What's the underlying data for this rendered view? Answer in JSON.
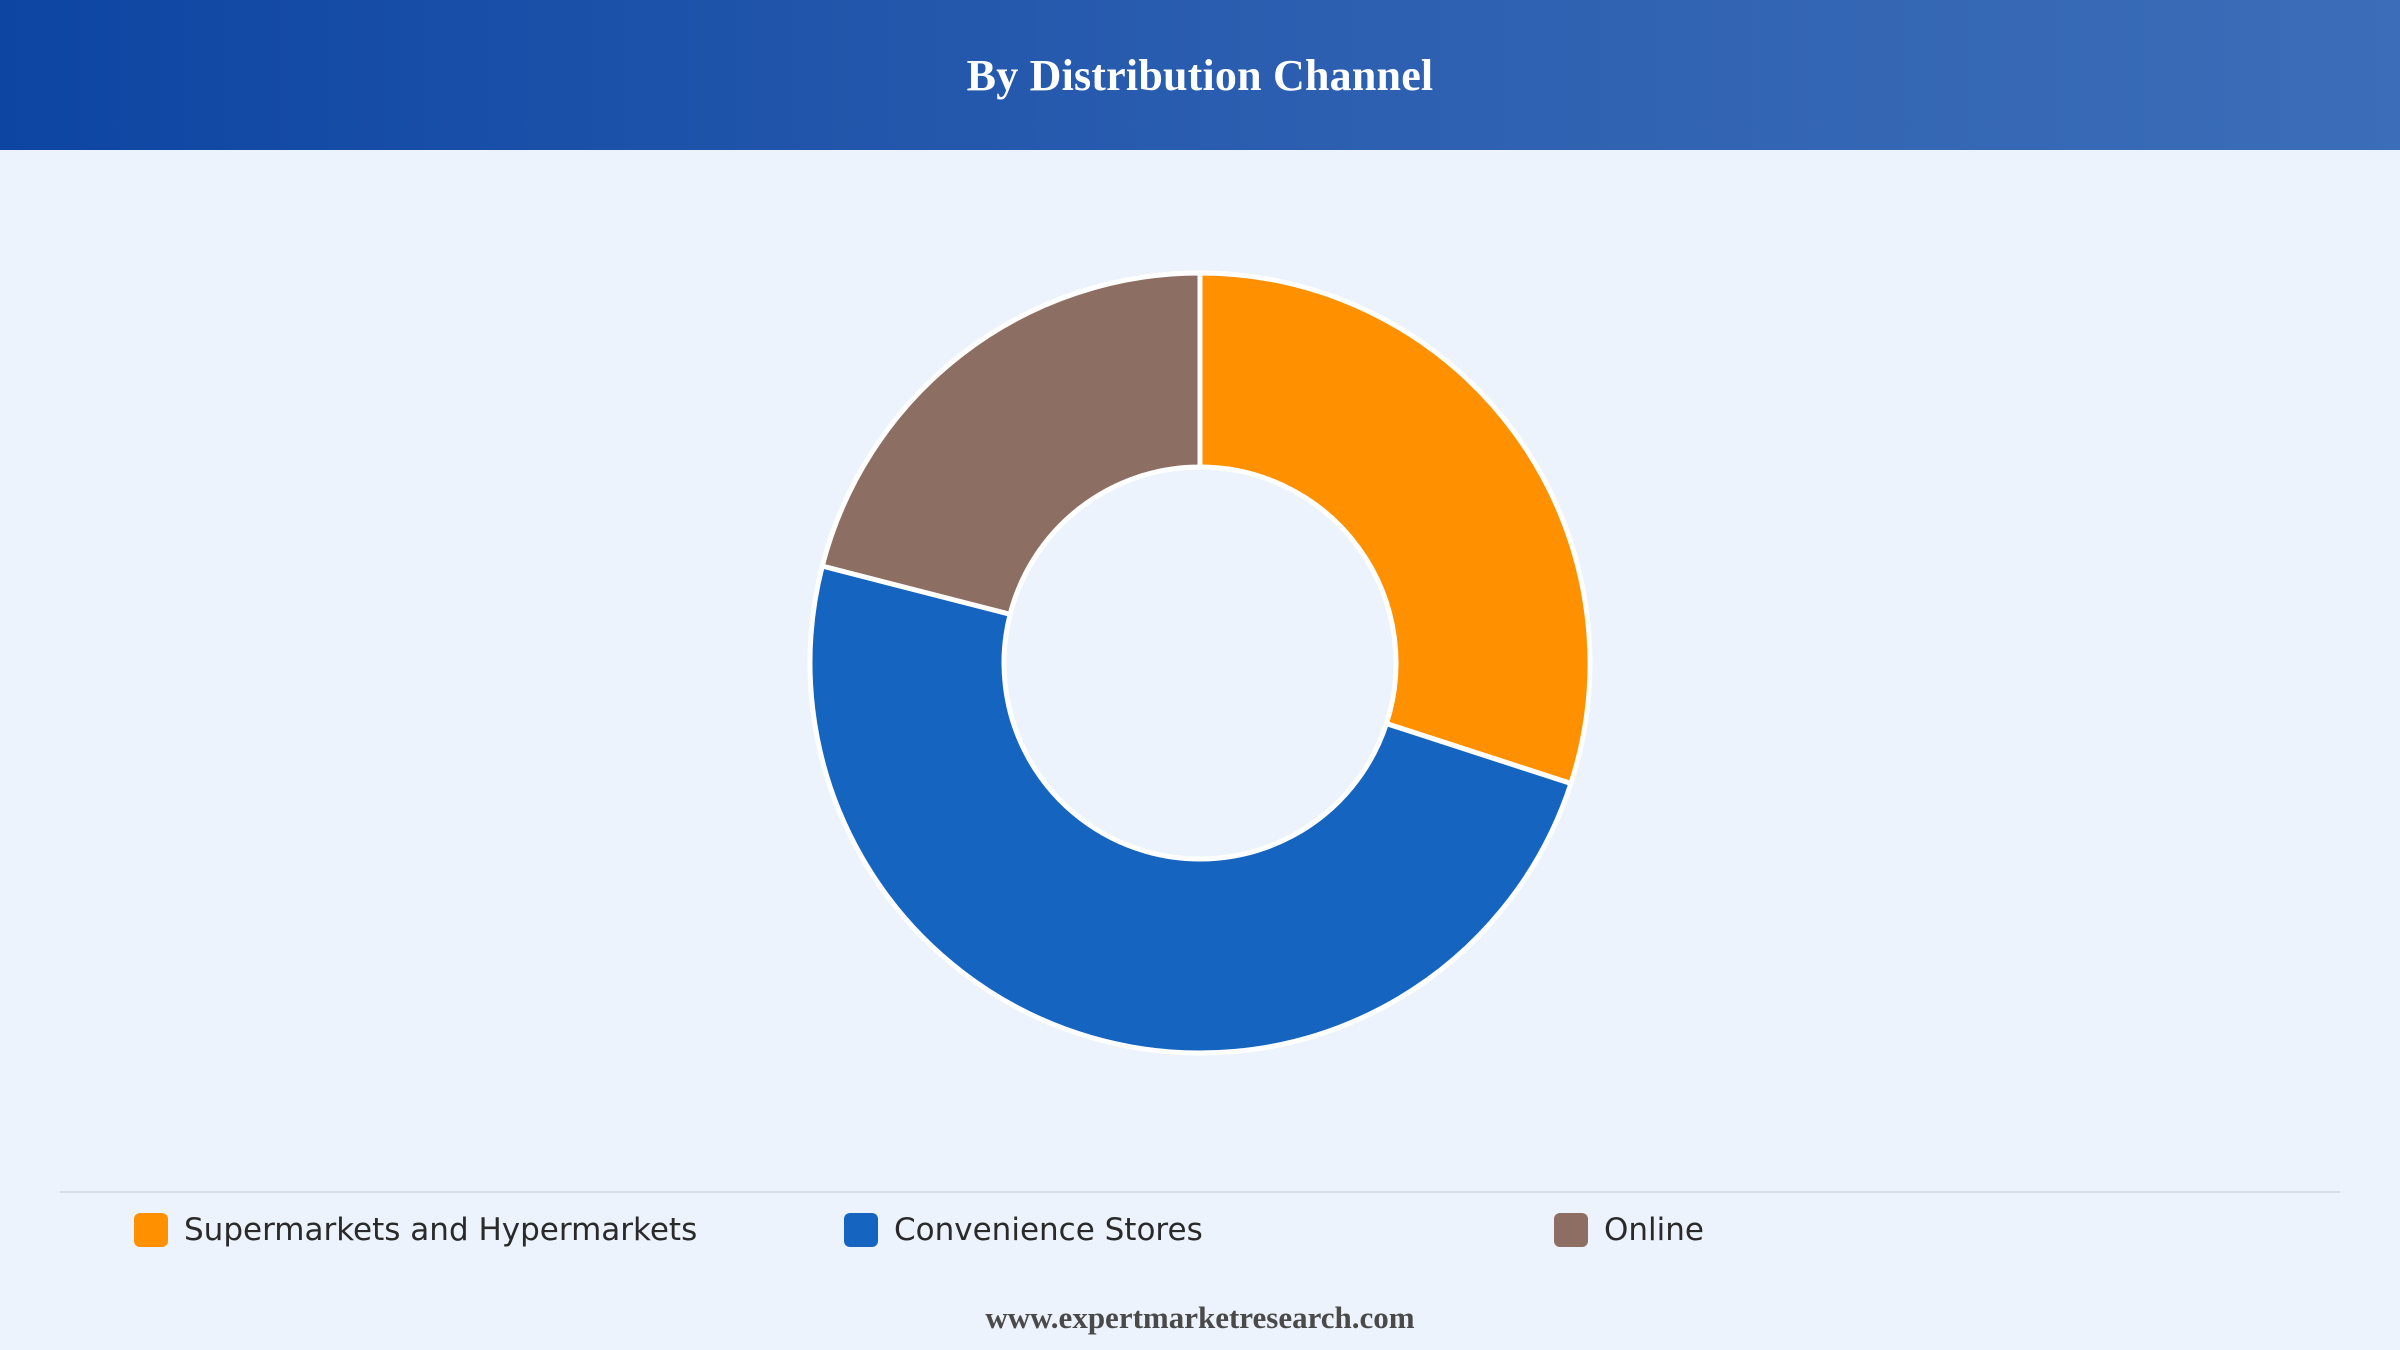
{
  "header": {
    "title": "By Distribution Channel"
  },
  "chart_data": {
    "type": "pie",
    "variant": "donut",
    "title": "By Distribution Channel",
    "slices": [
      {
        "name": "Supermarkets and Hypermarkets",
        "value": 30,
        "color": "#ff9100"
      },
      {
        "name": "Convenience Stores",
        "value": 49,
        "color": "#1565c0"
      },
      {
        "name": "Online",
        "value": 21,
        "color": "#8d6e63"
      }
    ],
    "legend_position": "bottom",
    "start_angle": "top",
    "direction": "clockwise"
  },
  "legend": {
    "items": [
      {
        "label": "Supermarkets and Hypermarkets",
        "color": "#ff9100"
      },
      {
        "label": "Convenience Stores",
        "color": "#1565c0"
      },
      {
        "label": "Online",
        "color": "#8d6e63"
      }
    ]
  },
  "footer": {
    "text": "www.expertmarketresearch.com"
  }
}
